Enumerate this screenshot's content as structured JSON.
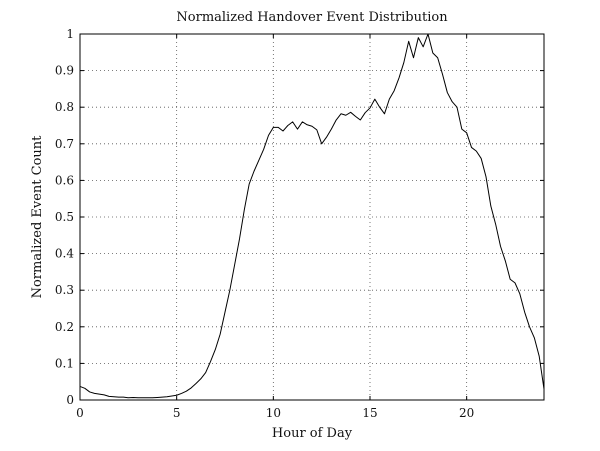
{
  "chart_data": {
    "type": "line",
    "title": "Normalized Handover Event Distribution",
    "xlabel": "Hour of Day",
    "ylabel": "Normalized Event Count",
    "xlim": [
      0,
      24
    ],
    "ylim": [
      0,
      1
    ],
    "xticks": [
      0,
      5,
      10,
      15,
      20
    ],
    "xtick_labels": [
      "0",
      "5",
      "10",
      "15",
      "20"
    ],
    "yticks": [
      0,
      0.1,
      0.2,
      0.3,
      0.4,
      0.5,
      0.6,
      0.7,
      0.8,
      0.9,
      1
    ],
    "ytick_labels": [
      "0",
      "0.1",
      "0.2",
      "0.3",
      "0.4",
      "0.5",
      "0.6",
      "0.7",
      "0.8",
      "0.9",
      "1"
    ],
    "grid": true,
    "series": [
      {
        "points": [
          [
            0.0,
            0.037
          ],
          [
            0.25,
            0.032
          ],
          [
            0.5,
            0.022
          ],
          [
            0.75,
            0.018
          ],
          [
            1.0,
            0.016
          ],
          [
            1.25,
            0.014
          ],
          [
            1.5,
            0.01
          ],
          [
            1.75,
            0.009
          ],
          [
            2.0,
            0.008
          ],
          [
            2.25,
            0.008
          ],
          [
            2.5,
            0.006
          ],
          [
            2.75,
            0.007
          ],
          [
            3.0,
            0.006
          ],
          [
            3.25,
            0.006
          ],
          [
            3.5,
            0.006
          ],
          [
            3.75,
            0.006
          ],
          [
            4.0,
            0.007
          ],
          [
            4.25,
            0.008
          ],
          [
            4.5,
            0.009
          ],
          [
            4.75,
            0.011
          ],
          [
            5.0,
            0.013
          ],
          [
            5.25,
            0.018
          ],
          [
            5.5,
            0.024
          ],
          [
            5.75,
            0.033
          ],
          [
            6.0,
            0.045
          ],
          [
            6.25,
            0.058
          ],
          [
            6.5,
            0.075
          ],
          [
            6.75,
            0.105
          ],
          [
            7.0,
            0.138
          ],
          [
            7.25,
            0.18
          ],
          [
            7.5,
            0.24
          ],
          [
            7.75,
            0.3
          ],
          [
            8.0,
            0.37
          ],
          [
            8.25,
            0.44
          ],
          [
            8.5,
            0.52
          ],
          [
            8.75,
            0.59
          ],
          [
            9.0,
            0.625
          ],
          [
            9.25,
            0.655
          ],
          [
            9.5,
            0.685
          ],
          [
            9.75,
            0.723
          ],
          [
            10.0,
            0.745
          ],
          [
            10.25,
            0.745
          ],
          [
            10.5,
            0.735
          ],
          [
            10.75,
            0.75
          ],
          [
            11.0,
            0.76
          ],
          [
            11.25,
            0.74
          ],
          [
            11.5,
            0.76
          ],
          [
            11.75,
            0.752
          ],
          [
            12.0,
            0.748
          ],
          [
            12.25,
            0.738
          ],
          [
            12.5,
            0.7
          ],
          [
            12.75,
            0.718
          ],
          [
            13.0,
            0.74
          ],
          [
            13.25,
            0.765
          ],
          [
            13.5,
            0.782
          ],
          [
            13.75,
            0.778
          ],
          [
            14.0,
            0.786
          ],
          [
            14.25,
            0.775
          ],
          [
            14.5,
            0.765
          ],
          [
            14.75,
            0.785
          ],
          [
            15.0,
            0.798
          ],
          [
            15.25,
            0.822
          ],
          [
            15.5,
            0.8
          ],
          [
            15.75,
            0.782
          ],
          [
            16.0,
            0.822
          ],
          [
            16.25,
            0.845
          ],
          [
            16.5,
            0.88
          ],
          [
            16.75,
            0.922
          ],
          [
            17.0,
            0.98
          ],
          [
            17.25,
            0.935
          ],
          [
            17.5,
            0.99
          ],
          [
            17.75,
            0.965
          ],
          [
            18.0,
            1.0
          ],
          [
            18.25,
            0.948
          ],
          [
            18.5,
            0.935
          ],
          [
            18.75,
            0.89
          ],
          [
            19.0,
            0.84
          ],
          [
            19.25,
            0.815
          ],
          [
            19.5,
            0.8
          ],
          [
            19.75,
            0.74
          ],
          [
            20.0,
            0.73
          ],
          [
            20.25,
            0.69
          ],
          [
            20.5,
            0.68
          ],
          [
            20.75,
            0.66
          ],
          [
            21.0,
            0.61
          ],
          [
            21.25,
            0.53
          ],
          [
            21.5,
            0.48
          ],
          [
            21.75,
            0.42
          ],
          [
            22.0,
            0.38
          ],
          [
            22.25,
            0.33
          ],
          [
            22.5,
            0.32
          ],
          [
            22.75,
            0.29
          ],
          [
            23.0,
            0.24
          ],
          [
            23.25,
            0.2
          ],
          [
            23.5,
            0.17
          ],
          [
            23.75,
            0.12
          ],
          [
            24.0,
            0.03
          ]
        ]
      }
    ]
  }
}
